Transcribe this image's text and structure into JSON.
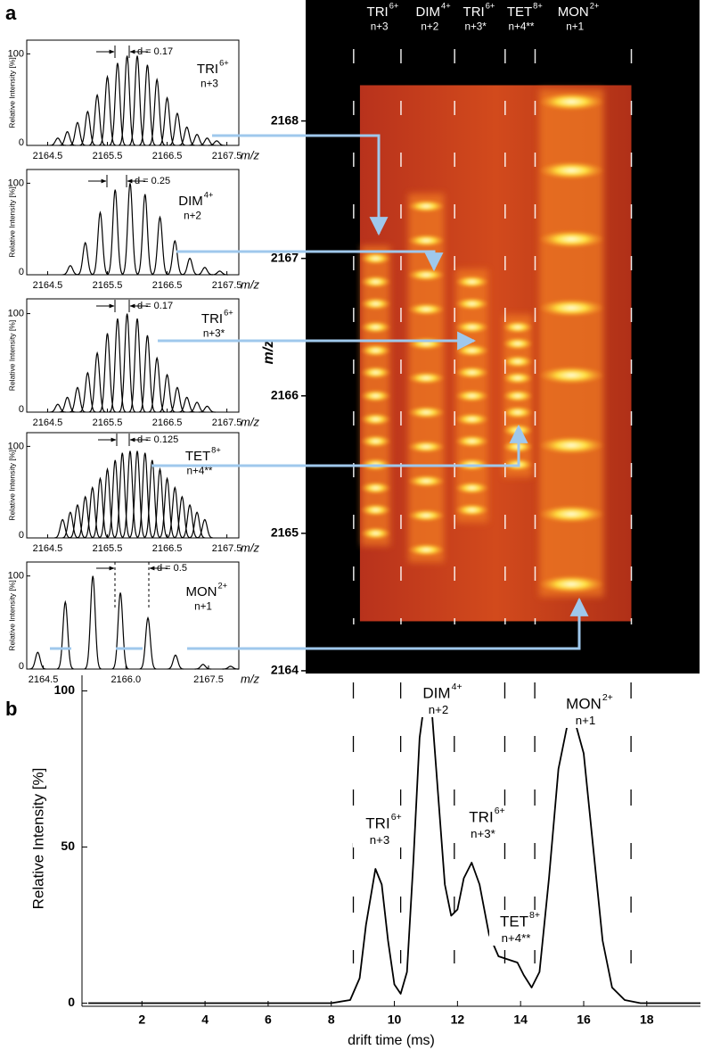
{
  "panel_labels": [
    "a",
    "b"
  ],
  "drift_markers": [
    8.7,
    10.2,
    11.9,
    13.5,
    14.45,
    17.5
  ],
  "chart_data": [
    {
      "type": "spectrum",
      "species": {
        "name": "TRI",
        "charge": "6+",
        "index": "n+3"
      },
      "annotation": "d = 0.17",
      "xlabel": "m/z",
      "ylabel": "Relative Intensity [%]",
      "xlim": [
        2164.15,
        2167.7
      ],
      "xticks": [
        2164.5,
        2165.5,
        2166.5,
        2167.5
      ],
      "ylim": [
        0,
        115
      ],
      "yticks": [
        0,
        100
      ],
      "color": "#000000",
      "peaks": {
        "mz": [
          2164.67,
          2164.83,
          2165.0,
          2165.17,
          2165.33,
          2165.5,
          2165.67,
          2165.83,
          2166.0,
          2166.17,
          2166.33,
          2166.5,
          2166.67,
          2166.83,
          2167.0,
          2167.17,
          2167.33
        ],
        "intensity": [
          8,
          15,
          25,
          37,
          55,
          75,
          90,
          98,
          98,
          88,
          72,
          52,
          35,
          20,
          12,
          8,
          5
        ]
      }
    },
    {
      "type": "spectrum",
      "species": {
        "name": "DIM",
        "charge": "4+",
        "index": "n+2"
      },
      "annotation": "d = 0.25",
      "xlabel": "m/z",
      "ylabel": "Relative Intensity [%]",
      "xlim": [
        2164.15,
        2167.7
      ],
      "xticks": [
        2164.5,
        2165.5,
        2166.5,
        2167.5
      ],
      "ylim": [
        0,
        115
      ],
      "yticks": [
        0,
        100
      ],
      "color": "#000000",
      "peaks": {
        "mz": [
          2164.88,
          2165.13,
          2165.38,
          2165.63,
          2165.88,
          2166.13,
          2166.38,
          2166.63,
          2166.88,
          2167.13,
          2167.38
        ],
        "intensity": [
          10,
          35,
          68,
          93,
          100,
          88,
          63,
          37,
          18,
          8,
          4
        ]
      }
    },
    {
      "type": "spectrum",
      "species": {
        "name": "TRI",
        "charge": "6+",
        "index": "n+3*"
      },
      "annotation": "d = 0.17",
      "xlabel": "m/z",
      "ylabel": "Relative Intensity [%]",
      "xlim": [
        2164.15,
        2167.7
      ],
      "xticks": [
        2164.5,
        2165.5,
        2166.5,
        2167.5
      ],
      "ylim": [
        0,
        115
      ],
      "yticks": [
        0,
        100
      ],
      "color": "#000000",
      "peaks": {
        "mz": [
          2164.67,
          2164.83,
          2165.0,
          2165.17,
          2165.33,
          2165.5,
          2165.67,
          2165.83,
          2166.0,
          2166.17,
          2166.33,
          2166.5,
          2166.67,
          2166.83,
          2167.0,
          2167.17
        ],
        "intensity": [
          8,
          15,
          25,
          40,
          60,
          80,
          95,
          100,
          95,
          78,
          55,
          38,
          25,
          15,
          10,
          6
        ]
      }
    },
    {
      "type": "spectrum",
      "species": {
        "name": "TET",
        "charge": "8+",
        "index": "n+4**"
      },
      "annotation": "d = 0.125",
      "xlabel": "m/z",
      "ylabel": "Relative Intensity [%]",
      "xlim": [
        2164.15,
        2167.7
      ],
      "xticks": [
        2164.5,
        2165.5,
        2166.5,
        2167.5
      ],
      "ylim": [
        0,
        115
      ],
      "yticks": [
        0,
        100
      ],
      "color": "#000000",
      "peaks": {
        "mz": [
          2164.75,
          2164.88,
          2165.0,
          2165.13,
          2165.25,
          2165.38,
          2165.5,
          2165.63,
          2165.75,
          2165.88,
          2166.0,
          2166.13,
          2166.25,
          2166.38,
          2166.5,
          2166.63,
          2166.75,
          2166.88,
          2167.0,
          2167.13
        ],
        "intensity": [
          20,
          28,
          36,
          45,
          55,
          65,
          75,
          85,
          93,
          95,
          95,
          93,
          85,
          75,
          65,
          55,
          45,
          36,
          28,
          20
        ]
      }
    },
    {
      "type": "spectrum",
      "species": {
        "name": "MON",
        "charge": "2+",
        "index": "n+1"
      },
      "annotation": "d = 0.5",
      "xlabel": "m/z",
      "ylabel": "Relative Intensity [%]",
      "xlim": [
        2164.2,
        2168.05
      ],
      "xticks": [
        2164.5,
        {
          "value": 2166,
          "label": "2166.0"
        },
        2167.5
      ],
      "ylim": [
        0,
        115
      ],
      "yticks": [
        0,
        100
      ],
      "color": "#000000",
      "peaks": {
        "mz": [
          2164.4,
          2164.9,
          2165.4,
          2165.9,
          2166.4,
          2166.9,
          2167.4,
          2167.9
        ],
        "intensity": [
          18,
          72,
          100,
          82,
          55,
          15,
          5,
          3
        ]
      }
    },
    {
      "type": "heatmap",
      "ylabel": "m/z",
      "xlim": [
        7.18,
        19.66
      ],
      "ylim": [
        2163.98,
        2168.88
      ],
      "yticks": [
        2164,
        2165,
        2166,
        2167,
        2168
      ],
      "data_extent": {
        "drift": [
          8.9,
          17.5
        ],
        "mz": [
          2164.36,
          2168.26
        ]
      },
      "columns": [
        {
          "species": {
            "name": "TRI",
            "charge": "6+",
            "index": "n+3"
          },
          "drift": 9.4,
          "mz": [
            2165.0,
            2165.17,
            2165.33,
            2165.5,
            2165.67,
            2165.83,
            2166.0,
            2166.17,
            2166.33,
            2166.5,
            2166.67,
            2166.83,
            2167.0
          ]
        },
        {
          "species": {
            "name": "DIM",
            "charge": "4+",
            "index": "n+2"
          },
          "drift": 11.0,
          "mz": [
            2164.88,
            2165.13,
            2165.38,
            2165.63,
            2165.88,
            2166.13,
            2166.38,
            2166.63,
            2166.88,
            2167.13,
            2167.38
          ]
        },
        {
          "species": {
            "name": "TRI",
            "charge": "6+",
            "index": "n+3*"
          },
          "drift": 12.45,
          "mz": [
            2165.17,
            2165.33,
            2165.5,
            2165.67,
            2165.83,
            2166.0,
            2166.17,
            2166.33,
            2166.5,
            2166.67,
            2166.83
          ]
        },
        {
          "species": {
            "name": "TET",
            "charge": "8+",
            "index": "n+4**"
          },
          "drift": 13.9,
          "mz": [
            2165.5,
            2165.63,
            2165.75,
            2165.88,
            2166.0,
            2166.13,
            2166.25,
            2166.38,
            2166.5
          ]
        },
        {
          "species": {
            "name": "MON",
            "charge": "2+",
            "index": "n+1"
          },
          "drift": 15.6,
          "mz": [
            2164.63,
            2165.14,
            2165.64,
            2166.15,
            2166.64,
            2167.14,
            2167.64,
            2168.14
          ]
        }
      ]
    },
    {
      "type": "line",
      "xlabel": "drift time (ms)",
      "ylabel": "Relative Intensity [%]",
      "xlim": [
        0.1,
        19.7
      ],
      "ylim": [
        -1,
        105
      ],
      "xticks": [
        2,
        4,
        6,
        8,
        10,
        12,
        14,
        16,
        18
      ],
      "yticks": [
        0,
        50,
        100
      ],
      "color": "#000000",
      "x": [
        0.3,
        8.0,
        8.6,
        8.9,
        9.1,
        9.4,
        9.6,
        9.8,
        10.0,
        10.2,
        10.4,
        10.6,
        10.8,
        11.0,
        11.2,
        11.4,
        11.6,
        11.8,
        12.0,
        12.2,
        12.45,
        12.7,
        13.0,
        13.3,
        13.6,
        13.9,
        14.1,
        14.35,
        14.6,
        14.9,
        15.2,
        15.5,
        15.7,
        16.0,
        16.3,
        16.6,
        16.9,
        17.3,
        17.8,
        19.7
      ],
      "values": [
        0,
        0,
        1,
        8,
        25,
        43,
        38,
        20,
        6,
        3,
        10,
        45,
        85,
        100,
        92,
        65,
        38,
        28,
        30,
        40,
        45,
        38,
        22,
        15,
        14,
        13,
        9,
        5,
        10,
        40,
        75,
        90,
        91,
        80,
        50,
        20,
        5,
        1,
        0,
        0
      ],
      "annotations": [
        {
          "name": "TRI",
          "charge": "6+",
          "index": "n+3"
        },
        {
          "name": "DIM",
          "charge": "4+",
          "index": "n+2"
        },
        {
          "name": "TRI",
          "charge": "6+",
          "index": "n+3*"
        },
        {
          "name": "TET",
          "charge": "8+",
          "index": "n+4**"
        },
        {
          "name": "MON",
          "charge": "2+",
          "index": "n+1"
        }
      ]
    }
  ]
}
